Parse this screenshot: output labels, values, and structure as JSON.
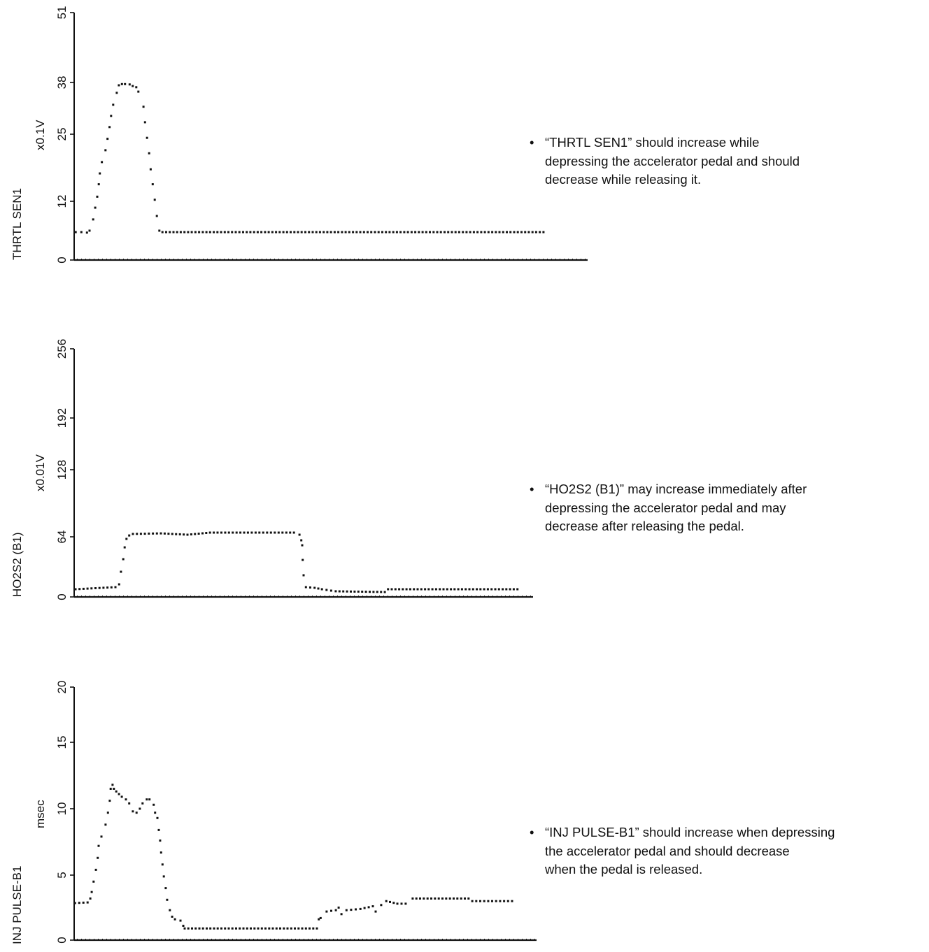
{
  "chart_data": [
    {
      "type": "scatter",
      "title": "",
      "ylabel": "THRTL SEN1",
      "unit": "x0.1V",
      "xlabel": "",
      "yticks": [
        0,
        12,
        25,
        38,
        51
      ],
      "ytick_labels": [
        "0",
        "12",
        "25",
        "38",
        "51"
      ],
      "ylim": [
        0,
        51
      ],
      "xlim": [
        0,
        100
      ],
      "grid": false,
      "series": [
        {
          "name": "THRTL SEN1",
          "points": [
            [
              0.3,
              5.7
            ],
            [
              1.4,
              5.7
            ],
            [
              2.5,
              5.6
            ],
            [
              3.0,
              6.0
            ],
            [
              3.7,
              8.3
            ],
            [
              4.1,
              10.7
            ],
            [
              4.5,
              12.9
            ],
            [
              4.8,
              15.3
            ],
            [
              5.0,
              17.4
            ],
            [
              5.4,
              19.6
            ],
            [
              6.1,
              21.9
            ],
            [
              6.5,
              24.1
            ],
            [
              6.9,
              26.8
            ],
            [
              7.2,
              29.6
            ],
            [
              7.6,
              32.4
            ],
            [
              8.3,
              35.4
            ],
            [
              8.7,
              37.3
            ],
            [
              9.3,
              37.6
            ],
            [
              9.9,
              37.6
            ],
            [
              10.8,
              37.5
            ],
            [
              11.4,
              37.1
            ],
            [
              12.1,
              36.8
            ],
            [
              12.5,
              35.7
            ],
            [
              13.5,
              31.9
            ],
            [
              13.8,
              28.0
            ],
            [
              14.2,
              24.3
            ],
            [
              14.6,
              21.3
            ],
            [
              14.9,
              18.2
            ],
            [
              15.3,
              15.3
            ],
            [
              15.7,
              12.3
            ],
            [
              16.1,
              9.0
            ],
            [
              16.6,
              6.0
            ],
            [
              17.2,
              5.7
            ],
            [
              91.4,
              5.7
            ]
          ]
        }
      ],
      "note": "“THRTL SEN1” should increase while\ndepressing the accelerator pedal and should\ndecrease while releasing it."
    },
    {
      "type": "scatter",
      "title": "",
      "ylabel": "HO2S2 (B1)",
      "unit": "x0.01V",
      "xlabel": "",
      "yticks": [
        0,
        64,
        128,
        192,
        256
      ],
      "ytick_labels": [
        "0",
        "64",
        "128",
        "192",
        "256"
      ],
      "ylim": [
        0,
        256
      ],
      "xlim": [
        0,
        100
      ],
      "grid": false,
      "series": [
        {
          "name": "HO2S2 (B1)",
          "points": [
            [
              0.3,
              8.2
            ],
            [
              9.0,
              10.4
            ],
            [
              9.8,
              13.4
            ],
            [
              10.2,
              26.8
            ],
            [
              10.7,
              40.2
            ],
            [
              11.0,
              52.8
            ],
            [
              11.4,
              61.8
            ],
            [
              12.0,
              65.3
            ],
            [
              12.8,
              66.7
            ],
            [
              18.9,
              67.3
            ],
            [
              24.7,
              66.0
            ],
            [
              29.6,
              68.0
            ],
            [
              38.7,
              68.0
            ],
            [
              47.9,
              68.0
            ],
            [
              49.1,
              66.0
            ],
            [
              49.5,
              60.3
            ],
            [
              49.7,
              55.0
            ],
            [
              49.8,
              39.4
            ],
            [
              50.0,
              23.1
            ],
            [
              50.5,
              10.4
            ],
            [
              52.4,
              9.7
            ],
            [
              54.0,
              8.2
            ],
            [
              57.0,
              6.0
            ],
            [
              67.7,
              5.2
            ],
            [
              68.4,
              8.2
            ],
            [
              96.6,
              8.2
            ]
          ]
        }
      ],
      "note": "“HO2S2 (B1)” may increase immediately after\ndepressing the accelerator pedal and may\ndecrease after releasing the pedal."
    },
    {
      "type": "scatter",
      "title": "",
      "ylabel": "INJ PULSE-B1",
      "unit": "msec",
      "xlabel": "",
      "yticks": [
        0,
        5,
        10,
        15,
        20
      ],
      "ytick_labels": [
        "0",
        "5",
        "10",
        "15",
        "20"
      ],
      "ylim": [
        0,
        20
      ],
      "xlim": [
        0,
        100
      ],
      "grid": false,
      "series": [
        {
          "name": "INJ PULSE-B1",
          "points": [
            [
              0.2,
              2.85
            ],
            [
              2.9,
              2.9
            ],
            [
              3.5,
              3.2
            ],
            [
              3.8,
              3.7
            ],
            [
              4.2,
              4.5
            ],
            [
              4.7,
              5.4
            ],
            [
              5.1,
              6.3
            ],
            [
              5.3,
              7.2
            ],
            [
              5.9,
              7.9
            ],
            [
              6.8,
              8.8
            ],
            [
              7.3,
              9.7
            ],
            [
              7.7,
              10.6
            ],
            [
              7.9,
              11.5
            ],
            [
              8.3,
              11.8
            ],
            [
              8.6,
              11.5
            ],
            [
              9.1,
              11.3
            ],
            [
              9.7,
              11.1
            ],
            [
              10.3,
              10.9
            ],
            [
              11.2,
              10.7
            ],
            [
              11.9,
              10.4
            ],
            [
              12.7,
              9.8
            ],
            [
              13.5,
              9.7
            ],
            [
              14.2,
              10.0
            ],
            [
              14.8,
              10.4
            ],
            [
              15.7,
              10.7
            ],
            [
              16.3,
              10.7
            ],
            [
              17.2,
              10.3
            ],
            [
              17.5,
              9.7
            ],
            [
              18.0,
              9.3
            ],
            [
              18.3,
              8.4
            ],
            [
              18.6,
              7.6
            ],
            [
              18.8,
              6.7
            ],
            [
              19.1,
              5.8
            ],
            [
              19.4,
              4.9
            ],
            [
              19.8,
              4.0
            ],
            [
              20.1,
              3.1
            ],
            [
              20.7,
              2.3
            ],
            [
              21.2,
              1.8
            ],
            [
              21.8,
              1.6
            ],
            [
              23.0,
              1.5
            ],
            [
              23.6,
              1.1
            ],
            [
              23.9,
              0.9
            ],
            [
              52.5,
              0.9
            ],
            [
              52.9,
              1.6
            ],
            [
              53.3,
              1.7
            ],
            [
              54.6,
              2.2
            ],
            [
              56.6,
              2.3
            ],
            [
              57.2,
              2.5
            ],
            [
              57.8,
              2.0
            ],
            [
              58.9,
              2.3
            ],
            [
              61.9,
              2.4
            ],
            [
              64.6,
              2.6
            ],
            [
              65.2,
              2.2
            ],
            [
              66.4,
              2.7
            ],
            [
              67.5,
              3.0
            ],
            [
              69.9,
              2.8
            ],
            [
              71.7,
              2.8
            ],
            [
              73.2,
              3.2
            ],
            [
              85.3,
              3.2
            ],
            [
              86.1,
              3.0
            ],
            [
              94.7,
              3.0
            ]
          ]
        }
      ],
      "note": "“INJ PULSE-B1” should increase when depressing\nthe accelerator pedal and should decrease\nwhen the pedal is released."
    }
  ],
  "bullet": "•",
  "colors": {
    "ink": "#111111",
    "background": "#ffffff"
  }
}
